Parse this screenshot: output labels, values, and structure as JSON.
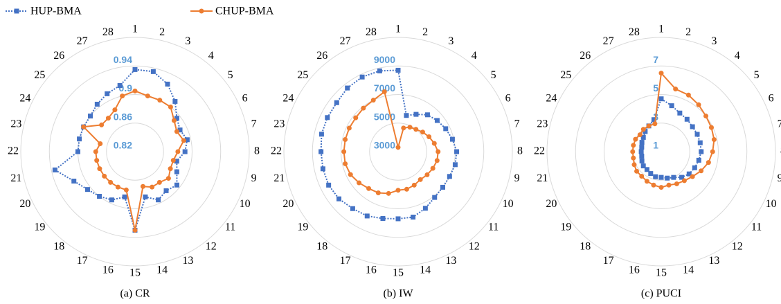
{
  "chart_data": [
    {
      "type": "radar",
      "title": "(a) CR",
      "categories": [
        "1",
        "2",
        "3",
        "4",
        "5",
        "6",
        "7",
        "8",
        "9",
        "10",
        "11",
        "12",
        "13",
        "14",
        "15",
        "16",
        "17",
        "18",
        "19",
        "20",
        "21",
        "22",
        "23",
        "24",
        "25",
        "26",
        "27",
        "28"
      ],
      "ylim": [
        0.82,
        0.98
      ],
      "yticks": [
        0.82,
        0.86,
        {
          "value": 0.9,
          "label": "0.9"
        },
        0.94
      ],
      "series": [
        {
          "name": "HUP-BMA",
          "color": "#4472c4",
          "line_style": "dotted",
          "marker": "square",
          "values": [
            0.935,
            0.935,
            0.925,
            0.91,
            0.895,
            0.89,
            0.895,
            0.89,
            0.88,
            0.885,
            0.895,
            0.89,
            0.895,
            0.885,
            0.93,
            0.885,
            0.895,
            0.9,
            0.905,
            0.915,
            0.935,
            0.9,
            0.9,
            0.9,
            0.9,
            0.905,
            0.91,
            0.915
          ]
        },
        {
          "name": "CHUP-BMA",
          "color": "#ed7d31",
          "line_style": "solid",
          "marker": "circle",
          "values": [
            0.905,
            0.9,
            0.9,
            0.9,
            0.89,
            0.885,
            0.89,
            0.88,
            0.875,
            0.875,
            0.88,
            0.875,
            0.875,
            0.87,
            0.93,
            0.875,
            0.875,
            0.875,
            0.875,
            0.875,
            0.875,
            0.875,
            0.87,
            0.9,
            0.88,
            0.88,
            0.885,
            0.9
          ]
        }
      ]
    },
    {
      "type": "radar",
      "title": "(b) IW",
      "categories": [
        "1",
        "2",
        "3",
        "4",
        "5",
        "6",
        "7",
        "8",
        "9",
        "10",
        "11",
        "12",
        "13",
        "14",
        "15",
        "16",
        "17",
        "18",
        "19",
        "20",
        "21",
        "22",
        "23",
        "24",
        "25",
        "26",
        "27",
        "28"
      ],
      "ylim": [
        3000,
        11000
      ],
      "yticks": [
        3000,
        5000,
        7000,
        9000
      ],
      "series": [
        {
          "color": "#4472c4",
          "line_style": "dotted",
          "marker": "square",
          "values": [
            8700,
            5600,
            5900,
            6300,
            6500,
            6700,
            6900,
            7100,
            7100,
            7000,
            7000,
            7100,
            7400,
            7700,
            7700,
            7800,
            8000,
            8100,
            8300,
            8400,
            8400,
            8400,
            8500,
            8500,
            8500,
            8700,
            8800,
            8800
          ]
        },
        {
          "color": "#ed7d31",
          "line_style": "solid",
          "marker": "circle",
          "values": [
            3300,
            4700,
            4900,
            5000,
            5200,
            5400,
            5600,
            5800,
            5800,
            5700,
            5600,
            5500,
            5600,
            5700,
            5700,
            6000,
            6200,
            6300,
            6500,
            6700,
            6800,
            6800,
            6800,
            6800,
            6800,
            6900,
            7000,
            7300
          ]
        }
      ]
    },
    {
      "type": "radar",
      "title": "(c) PUCI",
      "categories": [
        "1",
        "2",
        "3",
        "4",
        "5",
        "6",
        "7",
        "8",
        "9",
        "10",
        "11",
        "12",
        "13",
        "14",
        "15",
        "16",
        "17",
        "18",
        "19",
        "20",
        "21",
        "22",
        "23",
        "24",
        "25",
        "26",
        "27",
        "28"
      ],
      "ylim": [
        1,
        9
      ],
      "yticks": [
        1,
        3,
        5,
        7
      ],
      "series": [
        {
          "color": "#4472c4",
          "line_style": "dotted",
          "marker": "square",
          "values": [
            4.7,
            4.3,
            4.0,
            3.9,
            3.8,
            3.8,
            3.8,
            3.8,
            3.7,
            3.6,
            3.5,
            3.3,
            3.0,
            2.9,
            2.8,
            2.8,
            2.7,
            2.6,
            2.6,
            2.5,
            2.4,
            2.4,
            2.4,
            2.5,
            2.6,
            2.8,
            3.0,
            3.3
          ]
        },
        {
          "color": "#ed7d31",
          "line_style": "solid",
          "marker": "circle",
          "values": [
            6.5,
            5.5,
            5.4,
            5.2,
            5.0,
            4.9,
            4.8,
            4.6,
            4.4,
            4.1,
            3.8,
            3.6,
            3.5,
            3.4,
            3.5,
            3.4,
            3.3,
            3.2,
            3.2,
            3.1,
            3.0,
            3.0,
            3.0,
            3.0,
            2.9,
            3.0,
            3.0,
            3.0
          ]
        }
      ]
    }
  ]
}
